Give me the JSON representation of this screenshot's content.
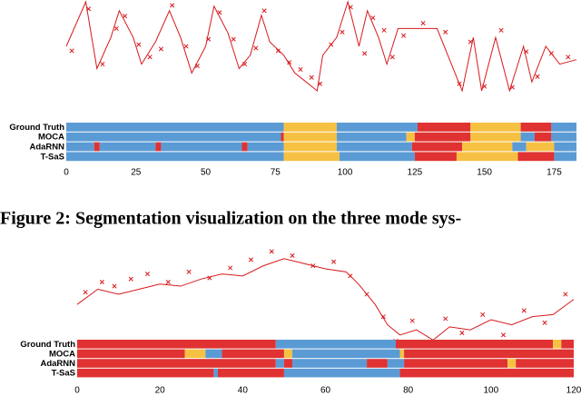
{
  "chart_data": [
    {
      "type": "segmentation",
      "xlim": [
        0,
        183
      ],
      "ylim": [
        0,
        100
      ],
      "xticks": [
        0,
        25,
        50,
        75,
        100,
        125,
        150,
        175
      ],
      "mode_colors": [
        "#5b9bd5",
        "#f6c143",
        "#e03232"
      ],
      "series": [
        {
          "name": "prediction",
          "color": "#d7191c",
          "x": [
            0,
            7,
            11,
            16,
            19,
            24,
            27,
            32,
            37,
            41,
            45,
            50,
            53,
            58,
            62,
            66,
            70,
            73,
            78,
            82,
            86,
            90,
            92,
            97,
            101,
            105,
            108,
            112,
            115,
            119,
            126,
            133,
            142,
            146,
            149,
            154,
            159,
            164,
            167,
            172,
            177,
            183
          ],
          "values": [
            50,
            100,
            25,
            60,
            90,
            60,
            30,
            55,
            90,
            60,
            20,
            50,
            95,
            65,
            25,
            40,
            85,
            55,
            40,
            20,
            10,
            0,
            40,
            60,
            100,
            50,
            90,
            60,
            30,
            70,
            70,
            70,
            0,
            60,
            0,
            60,
            0,
            50,
            10,
            50,
            30,
            35
          ]
        },
        {
          "name": "observation",
          "color": "#d7191c",
          "x": [
            2,
            8,
            13,
            18,
            21,
            26,
            30,
            34,
            38,
            43,
            47,
            51,
            55,
            60,
            64,
            68,
            71,
            76,
            80,
            84,
            88,
            91,
            95,
            99,
            102,
            107,
            110,
            114,
            117,
            121,
            128,
            136,
            141,
            145,
            150,
            156,
            160,
            165,
            169,
            174,
            180
          ],
          "values": [
            45,
            92,
            30,
            70,
            84,
            52,
            38,
            47,
            96,
            50,
            28,
            58,
            88,
            58,
            30,
            48,
            90,
            45,
            32,
            24,
            15,
            8,
            52,
            66,
            94,
            42,
            82,
            68,
            38,
            62,
            76,
            66,
            8,
            55,
            5,
            68,
            4,
            44,
            16,
            42,
            38
          ]
        }
      ],
      "rows": [
        {
          "name": "Ground Truth",
          "segments": [
            [
              0,
              78,
              0
            ],
            [
              78,
              97,
              1
            ],
            [
              97,
              126,
              0
            ],
            [
              126,
              145,
              2
            ],
            [
              145,
              163,
              1
            ],
            [
              163,
              174,
              2
            ],
            [
              174,
              183,
              0
            ]
          ]
        },
        {
          "name": "MOCA",
          "segments": [
            [
              0,
              77,
              0
            ],
            [
              77,
              78,
              2
            ],
            [
              78,
              97,
              1
            ],
            [
              97,
              122,
              0
            ],
            [
              122,
              125,
              1
            ],
            [
              125,
              145,
              2
            ],
            [
              145,
              163,
              1
            ],
            [
              163,
              168,
              0
            ],
            [
              168,
              174,
              2
            ],
            [
              174,
              183,
              0
            ]
          ]
        },
        {
          "name": "AdaRNN",
          "segments": [
            [
              0,
              10,
              0
            ],
            [
              10,
              12,
              2
            ],
            [
              12,
              32,
              0
            ],
            [
              32,
              34,
              2
            ],
            [
              34,
              63,
              0
            ],
            [
              63,
              65,
              2
            ],
            [
              65,
              78,
              0
            ],
            [
              78,
              97,
              1
            ],
            [
              97,
              124,
              0
            ],
            [
              124,
              142,
              2
            ],
            [
              142,
              160,
              1
            ],
            [
              160,
              165,
              0
            ],
            [
              165,
              175,
              1
            ],
            [
              175,
              183,
              0
            ]
          ]
        },
        {
          "name": "T-SaS",
          "segments": [
            [
              0,
              78,
              0
            ],
            [
              78,
              98,
              1
            ],
            [
              98,
              125,
              0
            ],
            [
              125,
              140,
              2
            ],
            [
              140,
              162,
              1
            ],
            [
              162,
              175,
              2
            ],
            [
              175,
              183,
              0
            ]
          ]
        }
      ]
    },
    {
      "type": "segmentation",
      "xlim": [
        0,
        120
      ],
      "ylim": [
        0,
        100
      ],
      "xticks": [
        0,
        20,
        40,
        60,
        80,
        100,
        120
      ],
      "mode_colors": [
        "#5b9bd5",
        "#f6c143",
        "#e03232"
      ],
      "series": [
        {
          "name": "prediction",
          "color": "#d7191c",
          "x": [
            0,
            5,
            10,
            15,
            20,
            25,
            30,
            35,
            40,
            45,
            50,
            55,
            60,
            65,
            68,
            72,
            75,
            78,
            82,
            86,
            90,
            95,
            100,
            105,
            110,
            115,
            120
          ],
          "values": [
            40,
            55,
            50,
            55,
            60,
            58,
            65,
            70,
            68,
            78,
            85,
            80,
            75,
            72,
            60,
            40,
            20,
            10,
            15,
            5,
            18,
            15,
            25,
            20,
            28,
            30,
            45
          ]
        },
        {
          "name": "observation",
          "color": "#d7191c",
          "x": [
            2,
            6,
            9,
            13,
            17,
            22,
            27,
            32,
            37,
            42,
            47,
            52,
            57,
            62,
            66,
            70,
            74,
            77,
            81,
            85,
            89,
            93,
            98,
            103,
            108,
            113,
            118
          ],
          "values": [
            52,
            62,
            58,
            65,
            70,
            62,
            72,
            66,
            76,
            84,
            92,
            88,
            78,
            82,
            68,
            50,
            28,
            4,
            24,
            0,
            26,
            12,
            30,
            10,
            34,
            22,
            50
          ]
        }
      ],
      "rows": [
        {
          "name": "Ground Truth",
          "segments": [
            [
              0,
              48,
              2
            ],
            [
              48,
              77,
              0
            ],
            [
              77,
              115,
              2
            ],
            [
              115,
              117,
              1
            ],
            [
              117,
              120,
              2
            ]
          ]
        },
        {
          "name": "MOCA",
          "segments": [
            [
              0,
              26,
              2
            ],
            [
              26,
              31,
              1
            ],
            [
              31,
              35,
              0
            ],
            [
              35,
              50,
              2
            ],
            [
              50,
              52,
              1
            ],
            [
              52,
              78,
              0
            ],
            [
              78,
              79,
              1
            ],
            [
              79,
              120,
              2
            ]
          ]
        },
        {
          "name": "AdaRNN",
          "segments": [
            [
              0,
              48,
              2
            ],
            [
              48,
              50,
              0
            ],
            [
              50,
              52,
              2
            ],
            [
              52,
              70,
              0
            ],
            [
              70,
              75,
              2
            ],
            [
              75,
              79,
              0
            ],
            [
              79,
              104,
              2
            ],
            [
              104,
              106,
              1
            ],
            [
              106,
              120,
              2
            ]
          ]
        },
        {
          "name": "T-SaS",
          "segments": [
            [
              0,
              33,
              2
            ],
            [
              33,
              34,
              0
            ],
            [
              34,
              50,
              2
            ],
            [
              50,
              78,
              0
            ],
            [
              78,
              120,
              2
            ]
          ]
        }
      ]
    }
  ],
  "caption": "Figure 2: Segmentation visualization on the three mode sys-"
}
